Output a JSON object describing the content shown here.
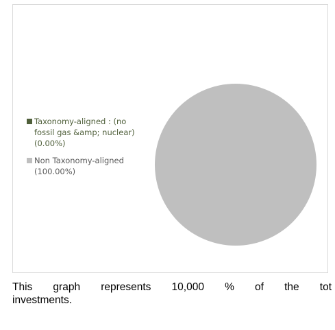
{
  "chart_data": {
    "type": "pie",
    "title": "",
    "categories": [
      "Taxonomy-aligned : (no fossil gas &amp; nuclear) (0.00%)",
      "Non Taxonomy-aligned (100.00%)"
    ],
    "values": [
      0.0,
      100.0
    ],
    "colors": [
      "#4f5f3a",
      "#bfbfbf"
    ],
    "legend_position": "left"
  },
  "legend": {
    "items": [
      {
        "label": "Taxonomy-aligned : (no fossil gas &amp; nuclear) (0.00%)",
        "color": "#4f5f3a",
        "text_color": "#4f5f3a"
      },
      {
        "label": "Non Taxonomy-aligned (100.00%)",
        "color": "#bfbfbf",
        "text_color": "#595959"
      }
    ]
  },
  "caption": {
    "line1": "This graph represents 10,000 % of the tot",
    "line2": "investments."
  }
}
